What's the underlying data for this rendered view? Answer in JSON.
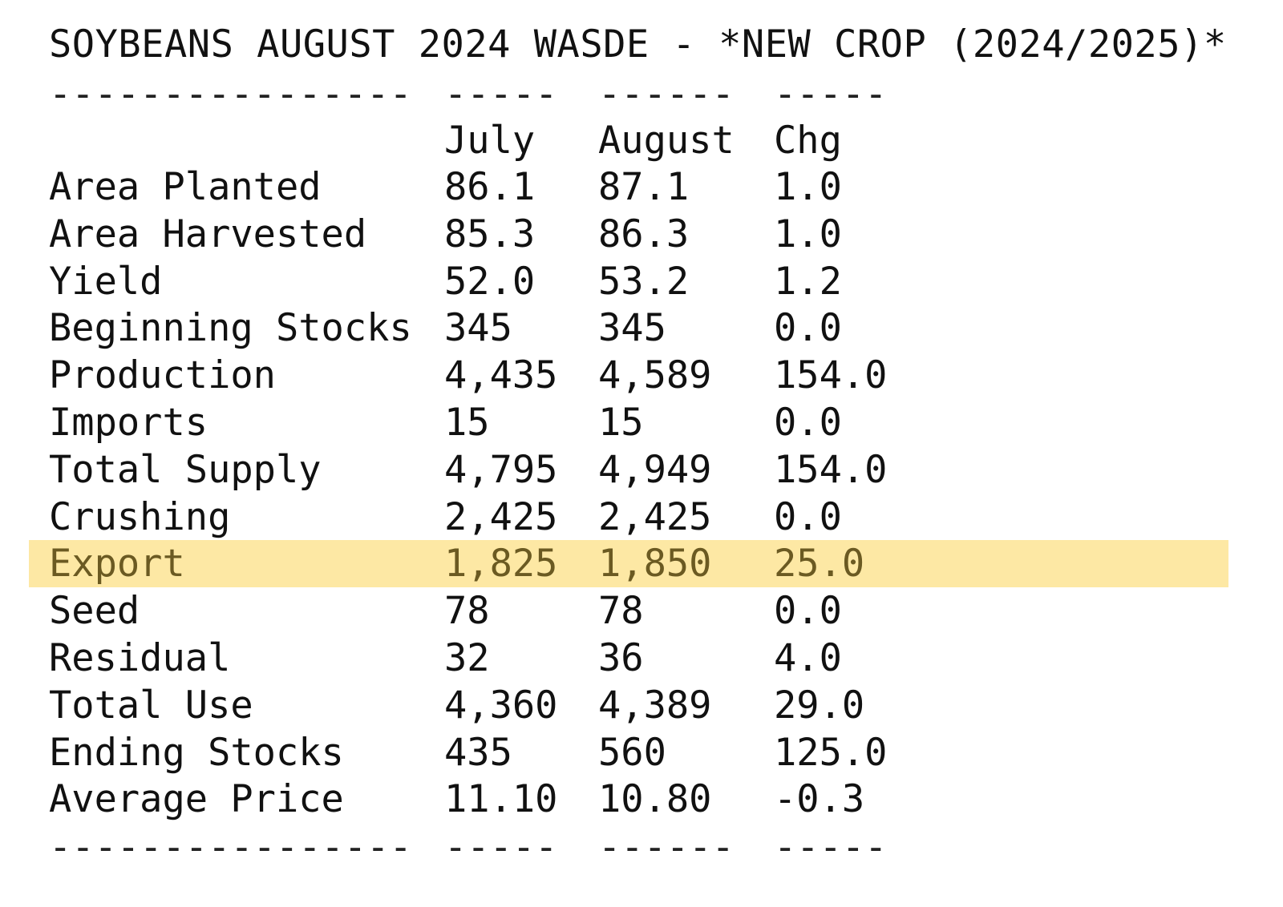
{
  "title": "SOYBEANS AUGUST 2024 WASDE - *NEW CROP (2024/2025)*",
  "rule": {
    "label_dash": "----------------",
    "july_dash": "-----",
    "august_dash": "------",
    "chg_dash": "-----"
  },
  "header": {
    "label": "",
    "july": "July",
    "august": "August",
    "chg": "Chg"
  },
  "rows": [
    {
      "label": "Area Planted",
      "july": "86.1",
      "august": "87.1",
      "chg": "1.0"
    },
    {
      "label": "Area Harvested",
      "july": "85.3",
      "august": "86.3",
      "chg": "1.0"
    },
    {
      "label": "Yield",
      "july": "52.0",
      "august": "53.2",
      "chg": "1.2"
    },
    {
      "label": "Beginning Stocks",
      "july": "345",
      "august": "345",
      "chg": "0.0"
    },
    {
      "label": "Production",
      "july": "4,435",
      "august": "4,589",
      "chg": "154.0"
    },
    {
      "label": "Imports",
      "july": "15",
      "august": "15",
      "chg": "0.0"
    },
    {
      "label": "Total Supply",
      "july": "4,795",
      "august": "4,949",
      "chg": "154.0"
    },
    {
      "label": "Crushing",
      "july": "2,425",
      "august": "2,425",
      "chg": "0.0"
    },
    {
      "label": "Export",
      "july": "1,825",
      "august": "1,850",
      "chg": "25.0"
    },
    {
      "label": "Seed",
      "july": "78",
      "august": "78",
      "chg": "0.0"
    },
    {
      "label": "Residual",
      "july": "32",
      "august": "36",
      "chg": "4.0"
    },
    {
      "label": "Total Use",
      "july": "4,360",
      "august": "4,389",
      "chg": "29.0"
    },
    {
      "label": "Ending Stocks",
      "july": "435",
      "august": "560",
      "chg": "125.0"
    },
    {
      "label": "Average Price",
      "july": "11.10",
      "august": "10.80",
      "chg": "-0.3"
    }
  ],
  "colors": {
    "highlight_background": "#fde8a4",
    "highlight_text": "#6b5a22",
    "text": "#111111"
  }
}
